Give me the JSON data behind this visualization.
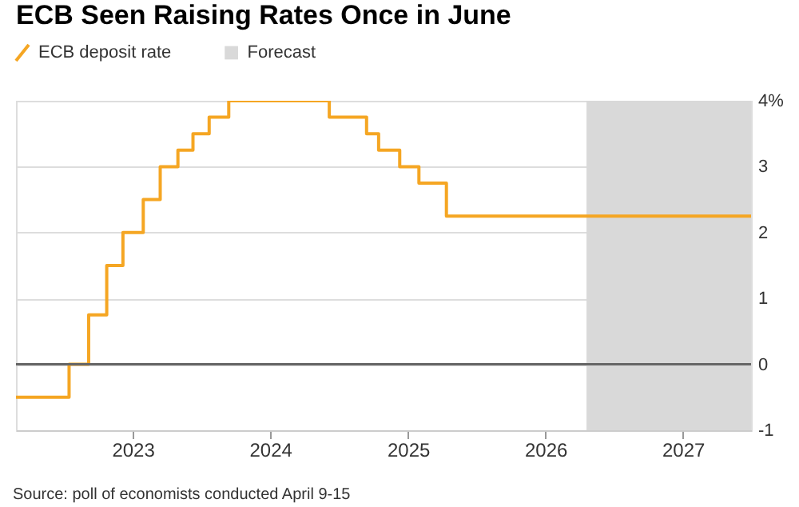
{
  "chart_data": {
    "type": "step",
    "title": "ECB Seen Raising Rates Once in June",
    "x": [
      "2022-02-25",
      "2022-07-16",
      "2022-09-06",
      "2022-10-24",
      "2022-12-06",
      "2023-01-29",
      "2023-03-15",
      "2023-05-01",
      "2023-06-10",
      "2023-07-23",
      "2023-09-13",
      "2024-06-06",
      "2024-09-13",
      "2024-10-15",
      "2024-12-10",
      "2025-01-30",
      "2025-04-13",
      "2027-07-01"
    ],
    "series": [
      {
        "name": "ECB deposit rate",
        "color": "#f5a623",
        "values": [
          -0.5,
          0,
          0.75,
          1.5,
          2.0,
          2.5,
          3.0,
          3.25,
          3.5,
          3.75,
          4.0,
          3.75,
          3.5,
          3.25,
          3.0,
          2.75,
          2.25,
          2.25
        ]
      }
    ],
    "xlim": [
      "2022-02-25",
      "2027-07-01"
    ],
    "xticks": [
      "2023",
      "2024",
      "2025",
      "2026",
      "2027"
    ],
    "ylim": [
      -1,
      4
    ],
    "yticks": [
      -1,
      0,
      1,
      2,
      3,
      {
        "value": 4,
        "label": "4%"
      }
    ],
    "grid": "y",
    "legend": "top left",
    "bands": [
      {
        "axis": "x",
        "from": "2026-04-20",
        "to": "2027-07-01",
        "label": "Forecast",
        "color": "#d9d9d9"
      }
    ],
    "ref_lines": [
      {
        "axis": "y",
        "value": 0,
        "color": "#666666"
      }
    ],
    "annotations": [
      "Source: poll of economists conducted April 9-15"
    ]
  }
}
